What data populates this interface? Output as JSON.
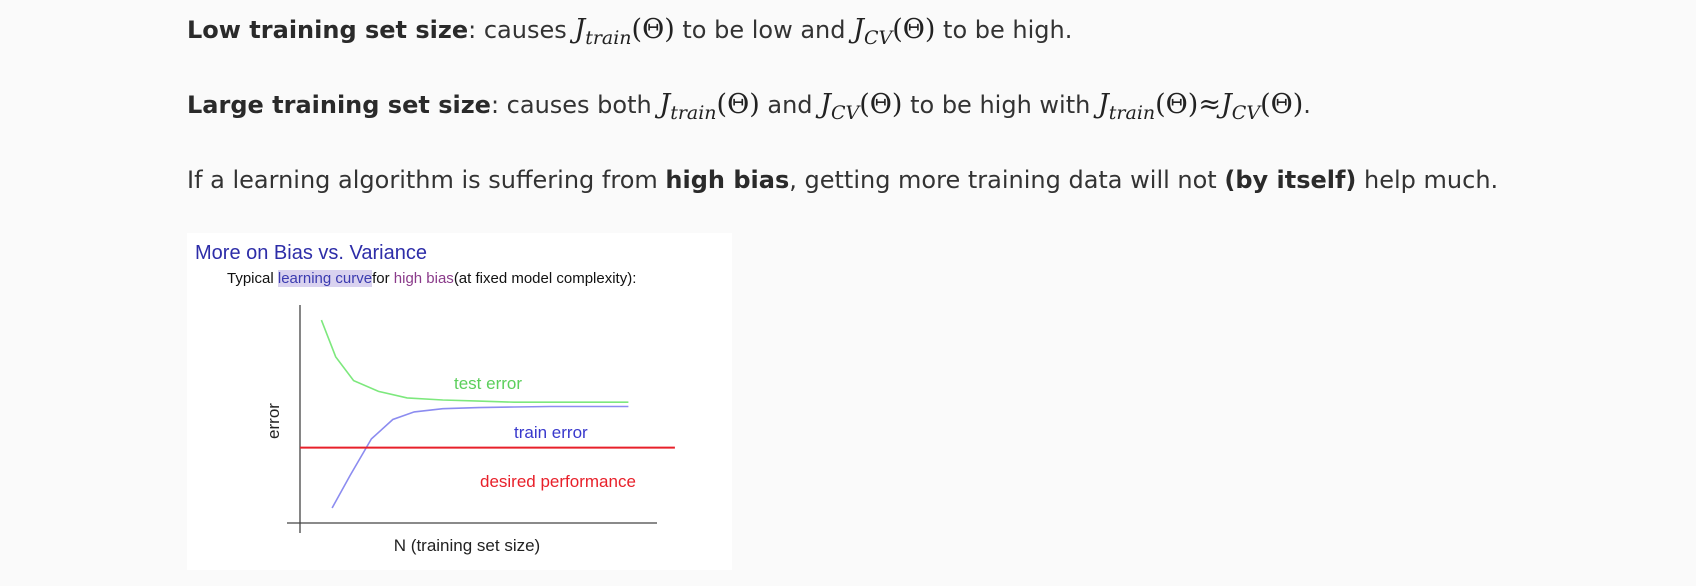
{
  "paragraphs": {
    "p1": {
      "bold": "Low training set size",
      "t1": ": causes ",
      "t2": " to be low and ",
      "t3": " to be high."
    },
    "p2": {
      "bold": "Large training set size",
      "t1": ": causes both ",
      "t2": " and ",
      "t3": " to be high with ",
      "t4": "."
    },
    "p3": {
      "t1": "If a learning algorithm is suffering from ",
      "bold1": "high bias",
      "t2": ", getting more training data will not ",
      "bold2": "(by itself)",
      "t3": " help much."
    }
  },
  "math": {
    "J": "J",
    "train": "train",
    "cv": "CV",
    "theta": "(Θ)",
    "approx": "≈"
  },
  "figure": {
    "title": "More on Bias vs. Variance",
    "subtitle_1": "Typical ",
    "subtitle_hl": "learning curve",
    "subtitle_2": "for ",
    "subtitle_hb": "high bias",
    "subtitle_3": "(at fixed model complexity):",
    "colors": {
      "test": "#7de87d",
      "train": "#8c8cf0",
      "desired": "#e8202a",
      "axis": "#444444",
      "title": "#2d2da8"
    }
  },
  "chart_data": {
    "type": "line",
    "title": "More on Bias vs. Variance",
    "xlabel": "N (training set size)",
    "ylabel": "error",
    "xlim": [
      0,
      10
    ],
    "ylim": [
      0,
      10
    ],
    "grid": false,
    "series": [
      {
        "name": "test error",
        "x": [
          0.6,
          1.0,
          1.5,
          2.2,
          3.0,
          4.0,
          5.0,
          6.0,
          7.0,
          8.0,
          9.2
        ],
        "y": [
          9.3,
          7.6,
          6.5,
          6.0,
          5.7,
          5.6,
          5.55,
          5.5,
          5.5,
          5.5,
          5.5
        ]
      },
      {
        "name": "train error",
        "x": [
          0.9,
          1.4,
          2.0,
          2.6,
          3.2,
          4.0,
          5.0,
          6.0,
          7.0,
          8.0,
          9.2
        ],
        "y": [
          0.6,
          2.1,
          3.8,
          4.7,
          5.05,
          5.2,
          5.25,
          5.28,
          5.3,
          5.3,
          5.3
        ]
      },
      {
        "name": "desired performance",
        "x": [
          0,
          10
        ],
        "y": [
          3.4,
          3.4
        ]
      }
    ]
  }
}
